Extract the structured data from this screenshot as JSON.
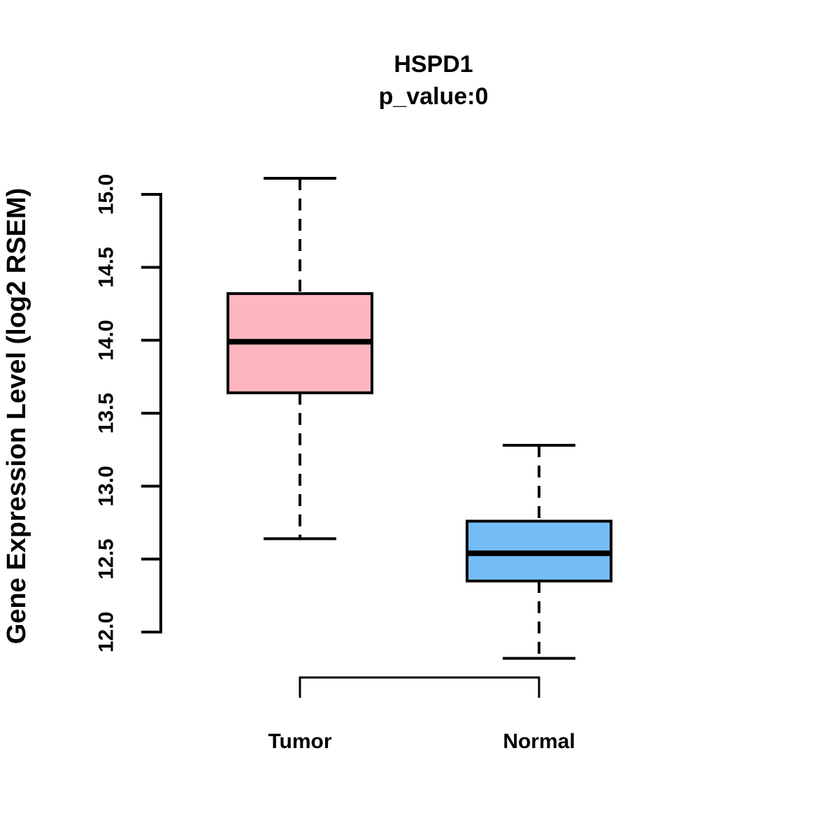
{
  "figure": {
    "background_color": "#FFFFFF",
    "line_color": "#000000"
  },
  "chart_data": {
    "type": "boxplot",
    "title": "HSPD1",
    "subtitle": "p_value:0",
    "p_value": 0,
    "ylabel": "Gene Expression Level (log2 RSEM)",
    "xlabel": "",
    "categories": [
      "Tumor",
      "Normal"
    ],
    "yticks": [
      12.0,
      12.5,
      13.0,
      13.5,
      14.0,
      14.5,
      15.0
    ],
    "ytick_labels": [
      "12.0",
      "12.5",
      "13.0",
      "13.5",
      "14.0",
      "14.5",
      "15.0"
    ],
    "ylim": [
      11.7,
      15.2
    ],
    "grid": false,
    "legend": "none",
    "whisker_style": "dashed",
    "series": [
      {
        "name": "Tumor",
        "color": "#FFB6C1",
        "whisker_low": 12.64,
        "q1": 13.64,
        "median": 13.99,
        "q3": 14.32,
        "whisker_high": 15.11
      },
      {
        "name": "Normal",
        "color": "#74BDF6",
        "whisker_low": 11.82,
        "q1": 12.35,
        "median": 12.54,
        "q3": 12.76,
        "whisker_high": 13.28
      }
    ],
    "comparison_bracket": {
      "connects": [
        "Tumor",
        "Normal"
      ],
      "position": "below-axis"
    }
  }
}
